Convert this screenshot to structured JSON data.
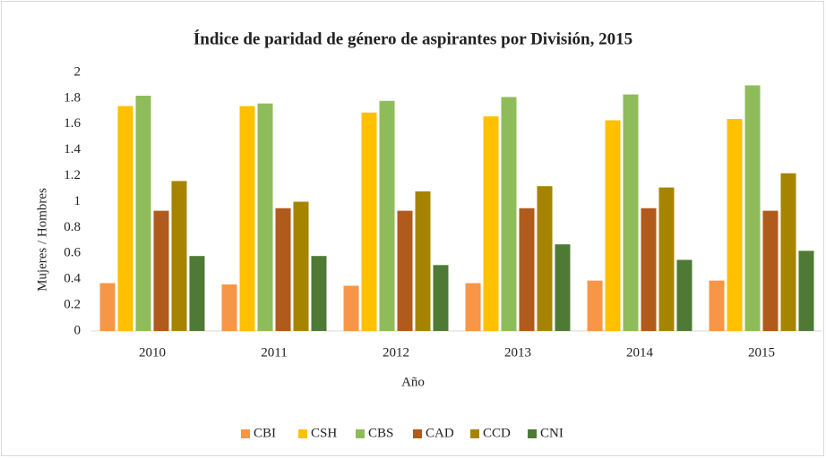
{
  "chart_data": {
    "type": "bar",
    "title": "Índice de paridad de género de aspirantes por División, 2015",
    "x_label": "Año",
    "y_label": "Mujeres / Hombres",
    "categories": [
      "2010",
      "2011",
      "2012",
      "2013",
      "2014",
      "2015"
    ],
    "series": [
      {
        "name": "CBI",
        "color": "#f79646",
        "values": [
          0.37,
          0.36,
          0.35,
          0.37,
          0.39,
          0.39
        ]
      },
      {
        "name": "CSH",
        "color": "#ffc000",
        "values": [
          1.74,
          1.74,
          1.69,
          1.66,
          1.63,
          1.64
        ]
      },
      {
        "name": "CBS",
        "color": "#8fbc5a",
        "values": [
          1.82,
          1.76,
          1.78,
          1.81,
          1.83,
          1.9
        ]
      },
      {
        "name": "CAD",
        "color": "#b05a1c",
        "values": [
          0.93,
          0.95,
          0.93,
          0.95,
          0.95,
          0.93
        ]
      },
      {
        "name": "CCD",
        "color": "#a68400",
        "values": [
          1.16,
          1.0,
          1.08,
          1.12,
          1.11,
          1.22
        ]
      },
      {
        "name": "CNI",
        "color": "#4e7a35",
        "values": [
          0.58,
          0.58,
          0.51,
          0.67,
          0.55,
          0.62
        ]
      }
    ],
    "ylim": [
      0,
      2
    ],
    "yticks": [
      0,
      0.2,
      0.4,
      0.6,
      0.8,
      1,
      1.2,
      1.4,
      1.6,
      1.8,
      2
    ],
    "grid": false,
    "legend": "bottom"
  }
}
